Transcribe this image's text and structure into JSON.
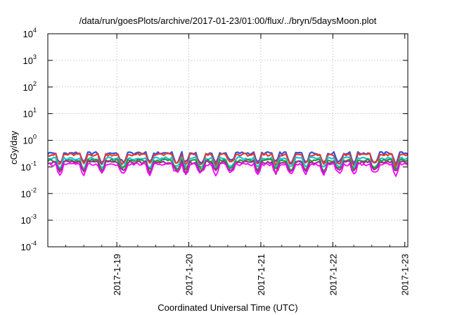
{
  "chart_data": {
    "type": "line",
    "title": "/data/run/goesPlots/archive/2017-01-23/01:00/flux/../bryn/5daysMoon.plot",
    "xlabel": "Coordinated Universal Time (UTC)",
    "ylabel": "cGy/day",
    "y_scale": "log",
    "ylim": [
      0.0001,
      10000
    ],
    "y_ticks": [
      {
        "value": 0.0001,
        "base": "10",
        "exp": "-4"
      },
      {
        "value": 0.001,
        "base": "10",
        "exp": "-3"
      },
      {
        "value": 0.01,
        "base": "10",
        "exp": "-2"
      },
      {
        "value": 0.1,
        "base": "10",
        "exp": "-1"
      },
      {
        "value": 1,
        "base": "10",
        "exp": "0"
      },
      {
        "value": 10,
        "base": "10",
        "exp": "1"
      },
      {
        "value": 100,
        "base": "10",
        "exp": "2"
      },
      {
        "value": 1000,
        "base": "10",
        "exp": "3"
      },
      {
        "value": 10000,
        "base": "10",
        "exp": "4"
      }
    ],
    "xlim": [
      "2017-01-18 01:00",
      "2017-01-23 01:00"
    ],
    "x_ticks": [
      "2017-1-19",
      "2017-1-20",
      "2017-1-21",
      "2017-1-22",
      "2017-1-23"
    ],
    "grid": true,
    "series": [
      {
        "color": "#3a4fd6",
        "level": 0.33,
        "dip_depth": 0.05
      },
      {
        "color": "#e23b2f",
        "level": 0.29,
        "dip_depth": 0.05
      },
      {
        "color": "#19c2e0",
        "level": 0.21,
        "dip_depth": 0.06
      },
      {
        "color": "#2a9a2e",
        "level": 0.175,
        "dip_depth": 0.06
      },
      {
        "color": "#9a2f8f",
        "level": 0.15,
        "dip_depth": 0.07
      },
      {
        "color": "#ff00ff",
        "level": 0.125,
        "dip_depth": 0.07
      }
    ],
    "dips": [
      "2017-01-18 05:00",
      "2017-01-18 13:00",
      "2017-01-18 19:00",
      "2017-01-19 02:00",
      "2017-01-19 11:00",
      "2017-01-19 20:00",
      "2017-01-19 23:00",
      "2017-01-20 04:00",
      "2017-01-20 09:00",
      "2017-01-20 14:00",
      "2017-01-20 23:00",
      "2017-01-21 05:00",
      "2017-01-21 10:00",
      "2017-01-21 15:00",
      "2017-01-21 21:00",
      "2017-01-22 02:00",
      "2017-01-22 07:00",
      "2017-01-22 14:00",
      "2017-01-22 21:00"
    ]
  }
}
